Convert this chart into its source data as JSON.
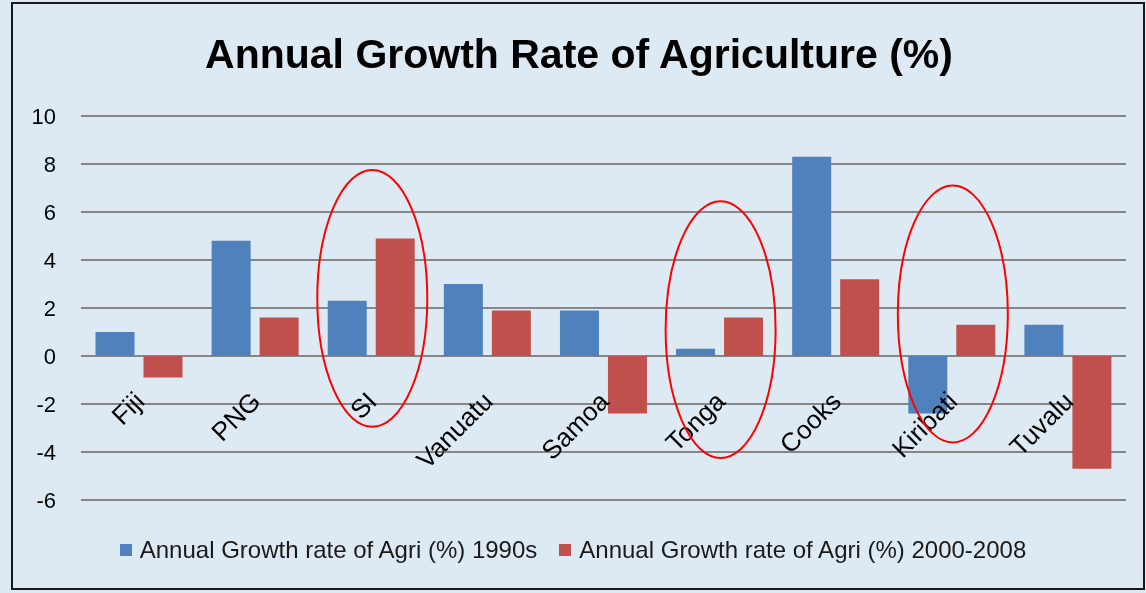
{
  "chart_data": {
    "type": "bar",
    "title": "Annual Growth Rate of Agriculture (%)",
    "categories": [
      "Fiji",
      "PNG",
      "SI",
      "Vanuatu",
      "Samoa",
      "Tonga",
      "Cooks",
      "Kiribati",
      "Tuvalu"
    ],
    "series": [
      {
        "name": "Annual Growth rate of Agri (%) 1990s",
        "color": "#4f81bd",
        "values": [
          1.0,
          4.8,
          2.3,
          3.0,
          1.9,
          0.3,
          8.3,
          -2.4,
          1.3
        ]
      },
      {
        "name": "Annual Growth rate of Agri (%) 2000-2008",
        "color": "#c0504d",
        "values": [
          -0.9,
          1.6,
          4.9,
          1.9,
          -2.4,
          1.6,
          3.2,
          1.3,
          -4.7
        ]
      }
    ],
    "ylim": [
      -6,
      10
    ],
    "yticks": [
      -6,
      -4,
      -2,
      0,
      2,
      4,
      6,
      8,
      10
    ],
    "grid": "y",
    "legend": "bottom"
  }
}
